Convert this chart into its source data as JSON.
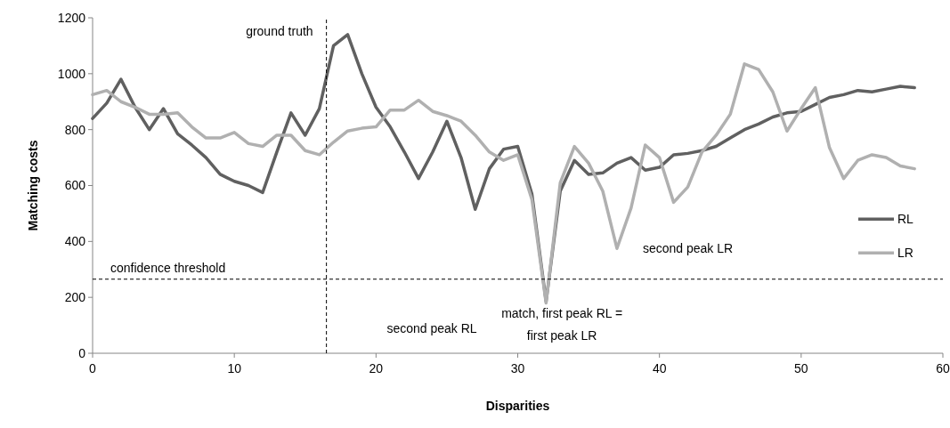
{
  "chart_data": {
    "type": "line",
    "xlabel": "Disparities",
    "ylabel": "Matching costs",
    "x": [
      0,
      1,
      2,
      3,
      4,
      5,
      6,
      7,
      8,
      9,
      10,
      11,
      12,
      13,
      14,
      15,
      16,
      17,
      18,
      19,
      20,
      21,
      22,
      23,
      24,
      25,
      26,
      27,
      28,
      29,
      30,
      31,
      32,
      33,
      34,
      35,
      36,
      37,
      38,
      39,
      40,
      41,
      42,
      43,
      44,
      45,
      46,
      47,
      48,
      49,
      50,
      51,
      52,
      53,
      54,
      55,
      56,
      57,
      58
    ],
    "series": [
      {
        "name": "RL",
        "color": "#606060",
        "values": [
          840,
          895,
          980,
          880,
          800,
          875,
          785,
          745,
          700,
          640,
          615,
          600,
          575,
          720,
          860,
          780,
          875,
          1100,
          1140,
          1000,
          880,
          810,
          720,
          625,
          720,
          830,
          700,
          515,
          660,
          730,
          740,
          570,
          185,
          580,
          690,
          640,
          645,
          680,
          700,
          655,
          665,
          710,
          715,
          725,
          740,
          770,
          800,
          820,
          845,
          860,
          865,
          890,
          915,
          925,
          940,
          935,
          945,
          955,
          950
        ]
      },
      {
        "name": "LR",
        "color": "#b0b0b0",
        "values": [
          925,
          940,
          900,
          880,
          855,
          855,
          860,
          810,
          770,
          770,
          790,
          750,
          740,
          780,
          780,
          725,
          710,
          755,
          795,
          805,
          810,
          870,
          870,
          905,
          865,
          850,
          830,
          780,
          720,
          690,
          710,
          550,
          180,
          610,
          740,
          680,
          580,
          375,
          520,
          745,
          700,
          540,
          595,
          720,
          780,
          855,
          1035,
          1015,
          935,
          795,
          875,
          950,
          735,
          625,
          690,
          710,
          700,
          670,
          660
        ]
      }
    ],
    "xlim": [
      0,
      60
    ],
    "xticks": [
      0,
      10,
      20,
      30,
      40,
      50,
      60
    ],
    "ylim": [
      0,
      1200
    ],
    "yticks": [
      0,
      200,
      400,
      600,
      800,
      1000,
      1200
    ],
    "grid": false,
    "legend": "right",
    "line_style": "solid",
    "marker": "none",
    "ref_lines": [
      {
        "axis": "x",
        "value": 16.5,
        "label": "ground truth",
        "color": "#000000",
        "line_style": "dashed"
      },
      {
        "axis": "y",
        "value": 265,
        "label": "confidence threshold",
        "color": "#000000",
        "line_style": "dashed"
      }
    ],
    "annotations": [
      "second peak RL",
      "second peak LR",
      "match, first peak RL =\nfirst peak LR"
    ]
  }
}
